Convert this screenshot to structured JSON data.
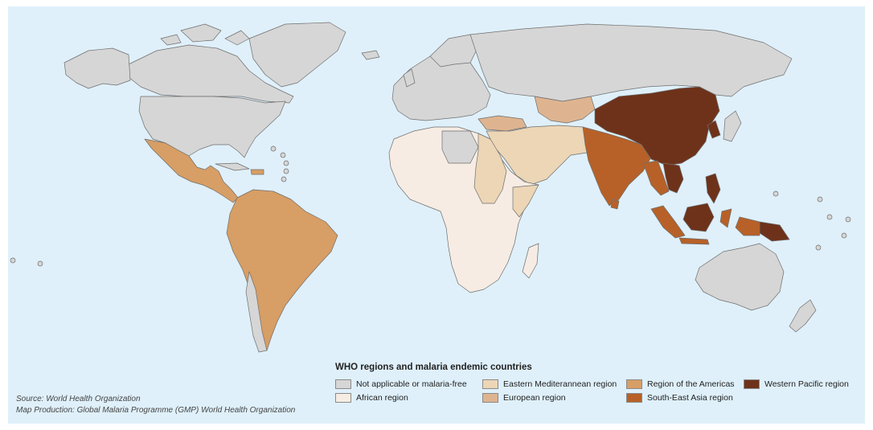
{
  "colors": {
    "ocean": "#dff0fa",
    "not_applicable": "#d6d6d6",
    "african": "#f6ece3",
    "eastern_mediterranean": "#ecd6b6",
    "european": "#deb490",
    "americas": "#d79e65",
    "south_east_asia": "#b76128",
    "western_pacific": "#6e321a"
  },
  "legend": {
    "title": "WHO regions and malaria endemic countries",
    "items": [
      {
        "label": "Not applicable or malaria-free",
        "color": "#d6d6d6"
      },
      {
        "label": "African region",
        "color": "#f6ece3"
      },
      {
        "label": "Eastern Mediterannean region",
        "color": "#ecd6b6"
      },
      {
        "label": "European region",
        "color": "#deb490"
      },
      {
        "label": "Region of the Americas",
        "color": "#d79e65"
      },
      {
        "label": "South-East Asia region",
        "color": "#b76128"
      },
      {
        "label": "Western Pacific region",
        "color": "#6e321a"
      }
    ]
  },
  "credits": {
    "source": "Source: World Health Organization",
    "production": "Map Production: Global Malaria Programme (GMP) World Health Organization"
  }
}
